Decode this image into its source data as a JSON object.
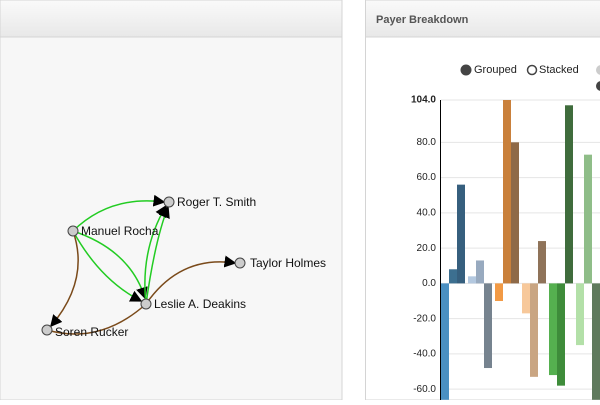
{
  "graph": {
    "nodes": [
      {
        "label": "Manuel Rocha"
      },
      {
        "label": "Roger T. Smith"
      },
      {
        "label": "Taylor Holmes"
      },
      {
        "label": "Leslie A. Deakins"
      },
      {
        "label": "Soren Rucker"
      }
    ]
  },
  "chart_data": {
    "type": "bar",
    "title": "Payer Breakdown",
    "legend": [
      "Grouped",
      "Stacked"
    ],
    "values": [
      -66,
      8,
      56,
      4,
      13,
      -48,
      -10,
      104,
      80,
      -17,
      -53,
      24,
      -52,
      -58,
      101,
      -35,
      73,
      -66
    ],
    "colors": [
      "#4a90c2",
      "#3c6f90",
      "#365f7e",
      "#b3c8df",
      "#98aabf",
      "#76838f",
      "#f29a45",
      "#c9803b",
      "#8f6a48",
      "#f7c89a",
      "#c9a582",
      "#8f7359",
      "#55b04f",
      "#3e8c3a",
      "#3f6c3c",
      "#b3e0a8",
      "#8fbd88",
      "#5f7a5d"
    ],
    "ylim": [
      -65,
      104
    ],
    "yticks": [
      {
        "value": 104,
        "label": "104.0"
      },
      {
        "value": 80,
        "label": "80.0"
      },
      {
        "value": 60,
        "label": "60.0"
      },
      {
        "value": 40,
        "label": "40.0"
      },
      {
        "value": 20,
        "label": "20.0"
      },
      {
        "value": 0,
        "label": "0.0"
      },
      {
        "value": -20,
        "label": "-20.0"
      },
      {
        "value": -40,
        "label": "-40.0"
      },
      {
        "value": -60,
        "label": "-60.0"
      }
    ],
    "grid": true
  }
}
